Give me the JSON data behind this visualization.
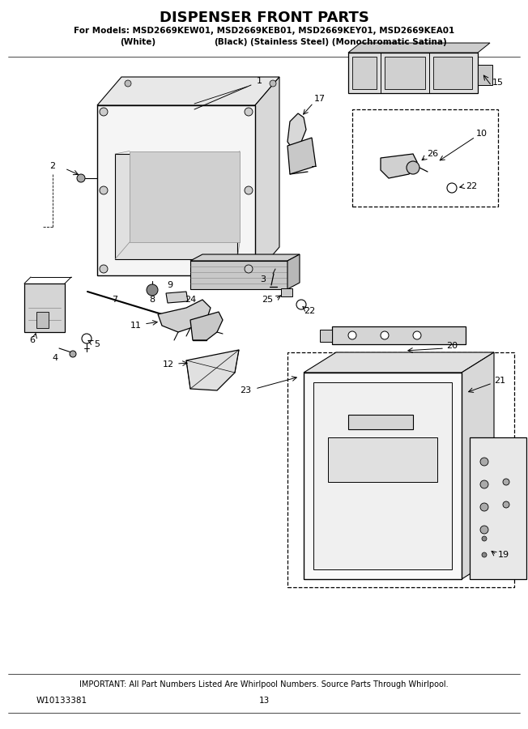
{
  "title_line1": "DISPENSER FRONT PARTS",
  "title_line2": "For Models: MSD2669KEW01, MSD2669KEB01, MSD2669KEY01, MSD2669KEA01",
  "title_line3_a": "(White)",
  "title_line3_b": "(Black)",
  "title_line3_c": "(Stainless Steel) (Monochromatic Satina)",
  "footer_line1": "IMPORTANT: All Part Numbers Listed Are Whirlpool Numbers. Source Parts Through Whirlpool.",
  "footer_left": "W10133381",
  "footer_center": "13",
  "bg_color": "#ffffff",
  "lc": "#000000"
}
